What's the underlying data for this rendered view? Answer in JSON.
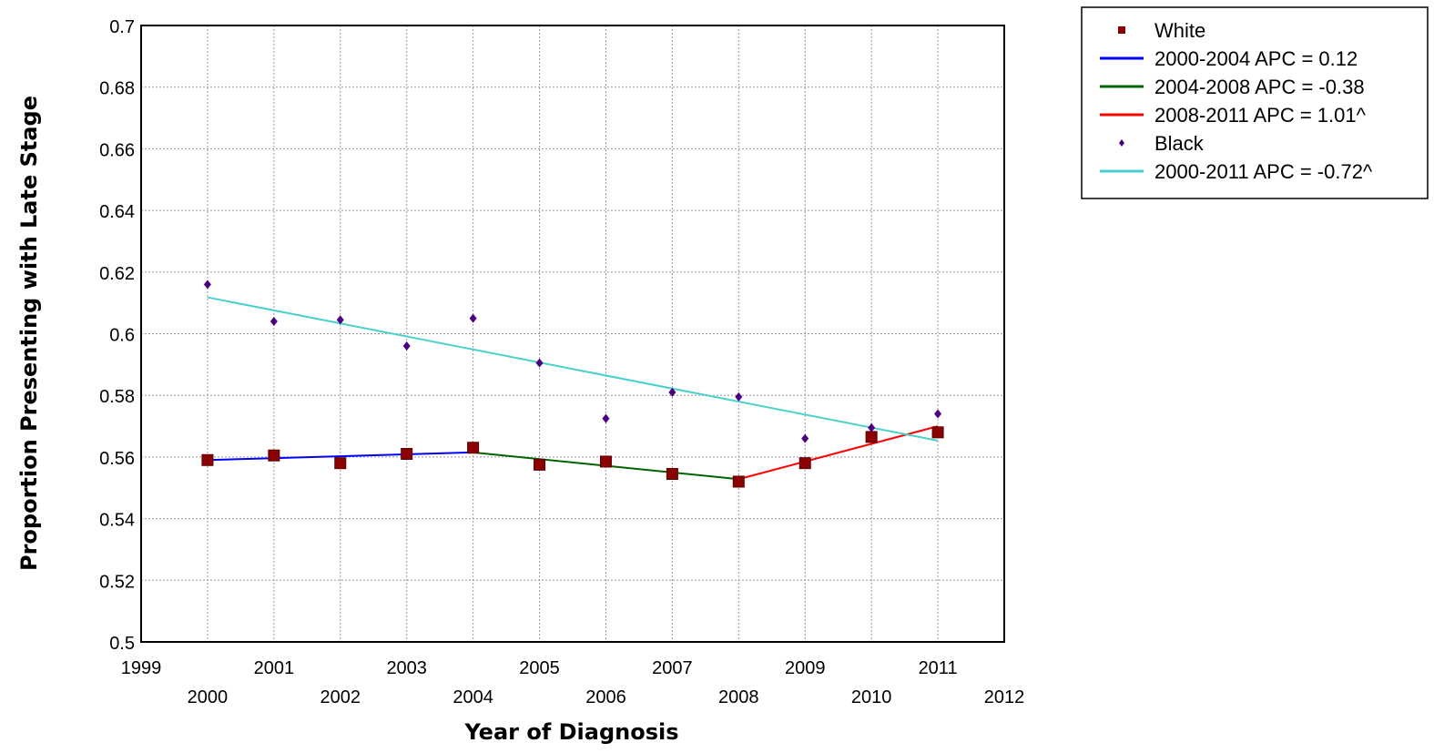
{
  "chart_data": {
    "type": "scatter",
    "xlabel": "Year of Diagnosis",
    "ylabel": "Proportion Presenting with Late Stage",
    "xlim": [
      1999,
      2012
    ],
    "ylim": [
      0.5,
      0.7
    ],
    "x_ticks": [
      1999,
      2000,
      2001,
      2002,
      2003,
      2004,
      2005,
      2006,
      2007,
      2008,
      2009,
      2010,
      2011,
      2012
    ],
    "y_ticks": [
      0.5,
      0.52,
      0.54,
      0.56,
      0.58,
      0.6,
      0.62,
      0.64,
      0.66,
      0.68,
      0.7
    ],
    "y_tick_labels": [
      "0.5",
      "0.52",
      "0.54",
      "0.56",
      "0.58",
      "0.6",
      "0.62",
      "0.64",
      "0.66",
      "0.68",
      "0.7"
    ],
    "grid": true,
    "legend_position": "top-right",
    "colors": {
      "white_points": "#8b0000",
      "black_points": "#4b0082",
      "seg_2000_2004": "#0000ff",
      "seg_2004_2008": "#006400",
      "seg_2008_2011": "#ff0000",
      "seg_black_2000_2011": "#48d1cc"
    },
    "series": [
      {
        "name": "White",
        "kind": "points",
        "marker": "square",
        "color": "#8b0000",
        "x": [
          2000,
          2001,
          2002,
          2003,
          2004,
          2005,
          2006,
          2007,
          2008,
          2009,
          2010,
          2011
        ],
        "y": [
          0.559,
          0.5605,
          0.558,
          0.561,
          0.563,
          0.5575,
          0.5585,
          0.5545,
          0.552,
          0.558,
          0.5665,
          0.568
        ]
      },
      {
        "name": "2000-2004 APC  =  0.12",
        "kind": "line",
        "color": "#0000ff",
        "x": [
          2000,
          2004
        ],
        "y": [
          0.559,
          0.5615
        ]
      },
      {
        "name": "2004-2008 APC  = -0.38",
        "kind": "line",
        "color": "#006400",
        "x": [
          2004,
          2008
        ],
        "y": [
          0.5615,
          0.5528
        ]
      },
      {
        "name": "2008-2011 APC  =  1.01^",
        "kind": "line",
        "color": "#ff0000",
        "x": [
          2008,
          2011
        ],
        "y": [
          0.5528,
          0.57
        ]
      },
      {
        "name": "Black",
        "kind": "points",
        "marker": "diamond",
        "color": "#4b0082",
        "x": [
          2000,
          2001,
          2002,
          2003,
          2004,
          2005,
          2006,
          2007,
          2008,
          2009,
          2010,
          2011
        ],
        "y": [
          0.616,
          0.604,
          0.6045,
          0.596,
          0.605,
          0.5905,
          0.5725,
          0.581,
          0.5795,
          0.566,
          0.5695,
          0.574
        ]
      },
      {
        "name": "2000-2011 APC  = -0.72^",
        "kind": "line",
        "color": "#48d1cc",
        "x": [
          2000,
          2011
        ],
        "y": [
          0.6118,
          0.5653
        ]
      }
    ]
  }
}
